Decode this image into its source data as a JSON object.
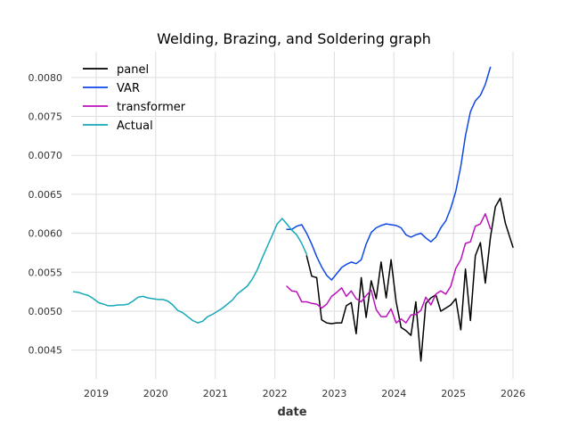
{
  "chart_data": {
    "type": "line",
    "title": "Welding, Brazing, and Soldering graph",
    "xlabel": "date",
    "ylabel": "",
    "xlim": [
      "2018-08-01",
      "2026-01-01"
    ],
    "ylim": [
      0.00413,
      0.00833
    ],
    "x_ticks": [
      "2019",
      "2020",
      "2021",
      "2022",
      "2023",
      "2024",
      "2025",
      "2026"
    ],
    "y_ticks": [
      "0.0045",
      "0.0050",
      "0.0055",
      "0.0060",
      "0.0065",
      "0.0070",
      "0.0075",
      "0.0080"
    ],
    "grid": true,
    "legend_position": "top-left",
    "series": [
      {
        "name": "panel",
        "color": "#000000",
        "points": [
          [
            "2022-07-15",
            0.00571
          ],
          [
            "2022-08-15",
            0.00545
          ],
          [
            "2022-09-15",
            0.00543
          ],
          [
            "2022-10-15",
            0.00489
          ],
          [
            "2022-11-15",
            0.00485
          ],
          [
            "2022-12-15",
            0.00484
          ],
          [
            "2023-01-15",
            0.00485
          ],
          [
            "2023-02-15",
            0.00485
          ],
          [
            "2023-03-15",
            0.00507
          ],
          [
            "2023-04-15",
            0.00511
          ],
          [
            "2023-05-15",
            0.00471
          ],
          [
            "2023-06-15",
            0.00543
          ],
          [
            "2023-07-15",
            0.00492
          ],
          [
            "2023-08-15",
            0.00539
          ],
          [
            "2023-09-15",
            0.00516
          ],
          [
            "2023-10-15",
            0.00563
          ],
          [
            "2023-11-15",
            0.00517
          ],
          [
            "2023-12-15",
            0.00566
          ],
          [
            "2024-01-15",
            0.00512
          ],
          [
            "2024-02-15",
            0.00479
          ],
          [
            "2024-03-15",
            0.00475
          ],
          [
            "2024-04-15",
            0.00469
          ],
          [
            "2024-05-15",
            0.00512
          ],
          [
            "2024-06-15",
            0.00436
          ],
          [
            "2024-07-15",
            0.0051
          ],
          [
            "2024-08-15",
            0.00517
          ],
          [
            "2024-09-15",
            0.00521
          ],
          [
            "2024-10-15",
            0.005
          ],
          [
            "2024-11-15",
            0.00504
          ],
          [
            "2024-12-15",
            0.00508
          ],
          [
            "2025-01-15",
            0.00516
          ],
          [
            "2025-02-15",
            0.00476
          ],
          [
            "2025-03-15",
            0.00554
          ],
          [
            "2025-04-15",
            0.00488
          ],
          [
            "2025-05-15",
            0.00571
          ],
          [
            "2025-06-15",
            0.00588
          ],
          [
            "2025-07-15",
            0.00536
          ],
          [
            "2025-08-15",
            0.00594
          ],
          [
            "2025-09-15",
            0.00634
          ],
          [
            "2025-10-15",
            0.00645
          ],
          [
            "2025-11-15",
            0.00613
          ],
          [
            "2026-01-01",
            0.00582
          ]
        ]
      },
      {
        "name": "VAR",
        "color": "#0d47e8",
        "points": [
          [
            "2022-03-15",
            0.00605
          ],
          [
            "2022-04-15",
            0.00605
          ],
          [
            "2022-05-15",
            0.00609
          ],
          [
            "2022-06-15",
            0.00611
          ],
          [
            "2022-07-15",
            0.006
          ],
          [
            "2022-08-15",
            0.00586
          ],
          [
            "2022-09-15",
            0.0057
          ],
          [
            "2022-10-15",
            0.00557
          ],
          [
            "2022-11-15",
            0.00546
          ],
          [
            "2022-12-15",
            0.0054
          ],
          [
            "2023-01-15",
            0.00548
          ],
          [
            "2023-02-15",
            0.00556
          ],
          [
            "2023-03-15",
            0.0056
          ],
          [
            "2023-04-15",
            0.00563
          ],
          [
            "2023-05-15",
            0.00561
          ],
          [
            "2023-06-15",
            0.00566
          ],
          [
            "2023-07-15",
            0.00586
          ],
          [
            "2023-08-15",
            0.00601
          ],
          [
            "2023-09-15",
            0.00607
          ],
          [
            "2023-10-15",
            0.0061
          ],
          [
            "2023-11-15",
            0.00612
          ],
          [
            "2023-12-15",
            0.00611
          ],
          [
            "2024-01-15",
            0.0061
          ],
          [
            "2024-02-15",
            0.00607
          ],
          [
            "2024-03-15",
            0.00598
          ],
          [
            "2024-04-15",
            0.00595
          ],
          [
            "2024-05-15",
            0.00598
          ],
          [
            "2024-06-15",
            0.006
          ],
          [
            "2024-07-15",
            0.00594
          ],
          [
            "2024-08-15",
            0.00589
          ],
          [
            "2024-09-15",
            0.00595
          ],
          [
            "2024-10-15",
            0.00607
          ],
          [
            "2024-11-15",
            0.00616
          ],
          [
            "2024-12-15",
            0.00632
          ],
          [
            "2025-01-15",
            0.00654
          ],
          [
            "2025-02-15",
            0.00686
          ],
          [
            "2025-03-15",
            0.00725
          ],
          [
            "2025-04-15",
            0.00756
          ],
          [
            "2025-05-15",
            0.0077
          ],
          [
            "2025-06-15",
            0.00777
          ],
          [
            "2025-07-15",
            0.00791
          ],
          [
            "2025-08-15",
            0.00813
          ]
        ]
      },
      {
        "name": "transformer",
        "color": "#bb11bb",
        "points": [
          [
            "2022-03-15",
            0.00532
          ],
          [
            "2022-04-15",
            0.00526
          ],
          [
            "2022-05-15",
            0.00525
          ],
          [
            "2022-06-15",
            0.00512
          ],
          [
            "2022-07-15",
            0.00512
          ],
          [
            "2022-08-15",
            0.0051
          ],
          [
            "2022-09-15",
            0.00509
          ],
          [
            "2022-10-15",
            0.00504
          ],
          [
            "2022-11-15",
            0.00509
          ],
          [
            "2022-12-15",
            0.00519
          ],
          [
            "2023-01-15",
            0.00524
          ],
          [
            "2023-02-15",
            0.0053
          ],
          [
            "2023-03-15",
            0.00519
          ],
          [
            "2023-04-15",
            0.00526
          ],
          [
            "2023-05-15",
            0.00516
          ],
          [
            "2023-06-15",
            0.00512
          ],
          [
            "2023-07-15",
            0.0052
          ],
          [
            "2023-08-15",
            0.00527
          ],
          [
            "2023-09-15",
            0.00502
          ],
          [
            "2023-10-15",
            0.00493
          ],
          [
            "2023-11-15",
            0.00493
          ],
          [
            "2023-12-15",
            0.00503
          ],
          [
            "2024-01-15",
            0.00485
          ],
          [
            "2024-02-15",
            0.0049
          ],
          [
            "2024-03-15",
            0.00485
          ],
          [
            "2024-04-15",
            0.00495
          ],
          [
            "2024-05-15",
            0.00496
          ],
          [
            "2024-06-15",
            0.00501
          ],
          [
            "2024-07-15",
            0.00518
          ],
          [
            "2024-08-15",
            0.00508
          ],
          [
            "2024-09-15",
            0.00522
          ],
          [
            "2024-10-15",
            0.00526
          ],
          [
            "2024-11-15",
            0.00522
          ],
          [
            "2024-12-15",
            0.00532
          ],
          [
            "2025-01-15",
            0.00555
          ],
          [
            "2025-02-15",
            0.00566
          ],
          [
            "2025-03-15",
            0.00587
          ],
          [
            "2025-04-15",
            0.00589
          ],
          [
            "2025-05-15",
            0.00609
          ],
          [
            "2025-06-15",
            0.00612
          ],
          [
            "2025-07-15",
            0.00625
          ],
          [
            "2025-08-15",
            0.00606
          ]
        ]
      },
      {
        "name": "Actual",
        "color": "#16a9b9",
        "points": [
          [
            "2018-08-15",
            0.00525
          ],
          [
            "2018-09-15",
            0.00524
          ],
          [
            "2018-10-15",
            0.00522
          ],
          [
            "2018-11-15",
            0.0052
          ],
          [
            "2018-12-15",
            0.00516
          ],
          [
            "2019-01-15",
            0.00511
          ],
          [
            "2019-02-15",
            0.00509
          ],
          [
            "2019-03-15",
            0.00507
          ],
          [
            "2019-04-15",
            0.00507
          ],
          [
            "2019-05-15",
            0.00508
          ],
          [
            "2019-06-15",
            0.00508
          ],
          [
            "2019-07-15",
            0.00509
          ],
          [
            "2019-08-15",
            0.00513
          ],
          [
            "2019-09-15",
            0.00518
          ],
          [
            "2019-10-15",
            0.00519
          ],
          [
            "2019-11-15",
            0.00517
          ],
          [
            "2019-12-15",
            0.00516
          ],
          [
            "2020-01-15",
            0.00515
          ],
          [
            "2020-02-15",
            0.00515
          ],
          [
            "2020-03-15",
            0.00513
          ],
          [
            "2020-04-15",
            0.00508
          ],
          [
            "2020-05-15",
            0.00501
          ],
          [
            "2020-06-15",
            0.00498
          ],
          [
            "2020-07-15",
            0.00493
          ],
          [
            "2020-08-15",
            0.00488
          ],
          [
            "2020-09-15",
            0.00485
          ],
          [
            "2020-10-15",
            0.00487
          ],
          [
            "2020-11-15",
            0.00493
          ],
          [
            "2020-12-15",
            0.00496
          ],
          [
            "2021-01-15",
            0.005
          ],
          [
            "2021-02-15",
            0.00504
          ],
          [
            "2021-03-15",
            0.00509
          ],
          [
            "2021-04-15",
            0.00514
          ],
          [
            "2021-05-15",
            0.00522
          ],
          [
            "2021-06-15",
            0.00527
          ],
          [
            "2021-07-15",
            0.00532
          ],
          [
            "2021-08-15",
            0.00541
          ],
          [
            "2021-09-15",
            0.00553
          ],
          [
            "2021-10-15",
            0.00568
          ],
          [
            "2021-11-15",
            0.00583
          ],
          [
            "2021-12-15",
            0.00597
          ],
          [
            "2022-01-15",
            0.00612
          ],
          [
            "2022-02-15",
            0.00619
          ],
          [
            "2022-03-15",
            0.00612
          ],
          [
            "2022-04-15",
            0.00604
          ],
          [
            "2022-05-15",
            0.00598
          ],
          [
            "2022-06-15",
            0.00587
          ],
          [
            "2022-07-15",
            0.00573
          ]
        ]
      }
    ]
  }
}
